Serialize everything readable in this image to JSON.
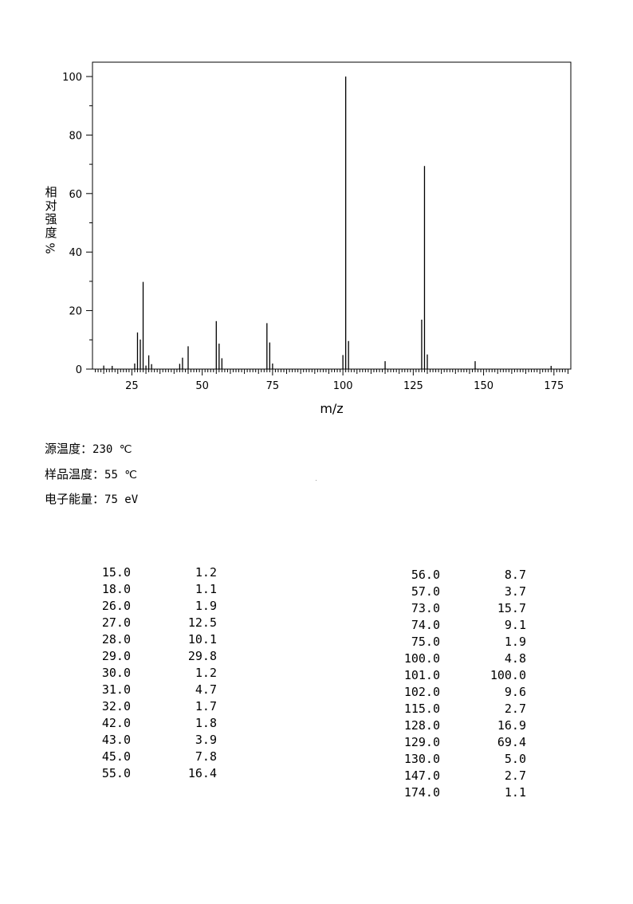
{
  "chart_data": {
    "type": "bar",
    "xlabel": "m/z",
    "ylabel": "相对强度%",
    "xlim": [
      11,
      181
    ],
    "ylim": [
      0,
      100
    ],
    "x_ticks": [
      25,
      50,
      75,
      100,
      125,
      150,
      175
    ],
    "y_ticks": [
      0,
      20,
      40,
      60,
      80,
      100
    ],
    "grid": false,
    "peaks": [
      {
        "mz": 15.0,
        "intensity": 1.2
      },
      {
        "mz": 18.0,
        "intensity": 1.1
      },
      {
        "mz": 26.0,
        "intensity": 1.9
      },
      {
        "mz": 27.0,
        "intensity": 12.5
      },
      {
        "mz": 28.0,
        "intensity": 10.1
      },
      {
        "mz": 29.0,
        "intensity": 29.8
      },
      {
        "mz": 30.0,
        "intensity": 1.2
      },
      {
        "mz": 31.0,
        "intensity": 4.7
      },
      {
        "mz": 32.0,
        "intensity": 1.7
      },
      {
        "mz": 42.0,
        "intensity": 1.8
      },
      {
        "mz": 43.0,
        "intensity": 3.9
      },
      {
        "mz": 45.0,
        "intensity": 7.8
      },
      {
        "mz": 55.0,
        "intensity": 16.4
      },
      {
        "mz": 56.0,
        "intensity": 8.7
      },
      {
        "mz": 57.0,
        "intensity": 3.7
      },
      {
        "mz": 73.0,
        "intensity": 15.7
      },
      {
        "mz": 74.0,
        "intensity": 9.1
      },
      {
        "mz": 75.0,
        "intensity": 1.9
      },
      {
        "mz": 100.0,
        "intensity": 4.8
      },
      {
        "mz": 101.0,
        "intensity": 100.0
      },
      {
        "mz": 102.0,
        "intensity": 9.6
      },
      {
        "mz": 115.0,
        "intensity": 2.7
      },
      {
        "mz": 128.0,
        "intensity": 16.9
      },
      {
        "mz": 129.0,
        "intensity": 69.4
      },
      {
        "mz": 130.0,
        "intensity": 5.0
      },
      {
        "mz": 147.0,
        "intensity": 2.7
      },
      {
        "mz": 174.0,
        "intensity": 1.1
      }
    ]
  },
  "labels": {
    "ylabel_chars": [
      "相",
      "对",
      "强",
      "度"
    ],
    "ylabel_unit": "%",
    "xlabel": "m/z"
  },
  "conditions": {
    "source_temp_label": "源温度：",
    "source_temp_value": "230 ℃",
    "sample_temp_label": "样品温度：",
    "sample_temp_value": "55 ℃",
    "energy_label": "电子能量：",
    "energy_value": "75 eV"
  },
  "table_left": [
    [
      "15.0",
      "1.2"
    ],
    [
      "18.0",
      "1.1"
    ],
    [
      "26.0",
      "1.9"
    ],
    [
      "27.0",
      "12.5"
    ],
    [
      "28.0",
      "10.1"
    ],
    [
      "29.0",
      "29.8"
    ],
    [
      "30.0",
      "1.2"
    ],
    [
      "31.0",
      "4.7"
    ],
    [
      "32.0",
      "1.7"
    ],
    [
      "42.0",
      "1.8"
    ],
    [
      "43.0",
      "3.9"
    ],
    [
      "45.0",
      "7.8"
    ],
    [
      "55.0",
      "16.4"
    ]
  ],
  "table_right": [
    [
      "56.0",
      "8.7"
    ],
    [
      "57.0",
      "3.7"
    ],
    [
      "73.0",
      "15.7"
    ],
    [
      "74.0",
      "9.1"
    ],
    [
      "75.0",
      "1.9"
    ],
    [
      "100.0",
      "4.8"
    ],
    [
      "101.0",
      "100.0"
    ],
    [
      "102.0",
      "9.6"
    ],
    [
      "115.0",
      "2.7"
    ],
    [
      "128.0",
      "16.9"
    ],
    [
      "129.0",
      "69.4"
    ],
    [
      "130.0",
      "5.0"
    ],
    [
      "147.0",
      "2.7"
    ],
    [
      "174.0",
      "1.1"
    ]
  ]
}
